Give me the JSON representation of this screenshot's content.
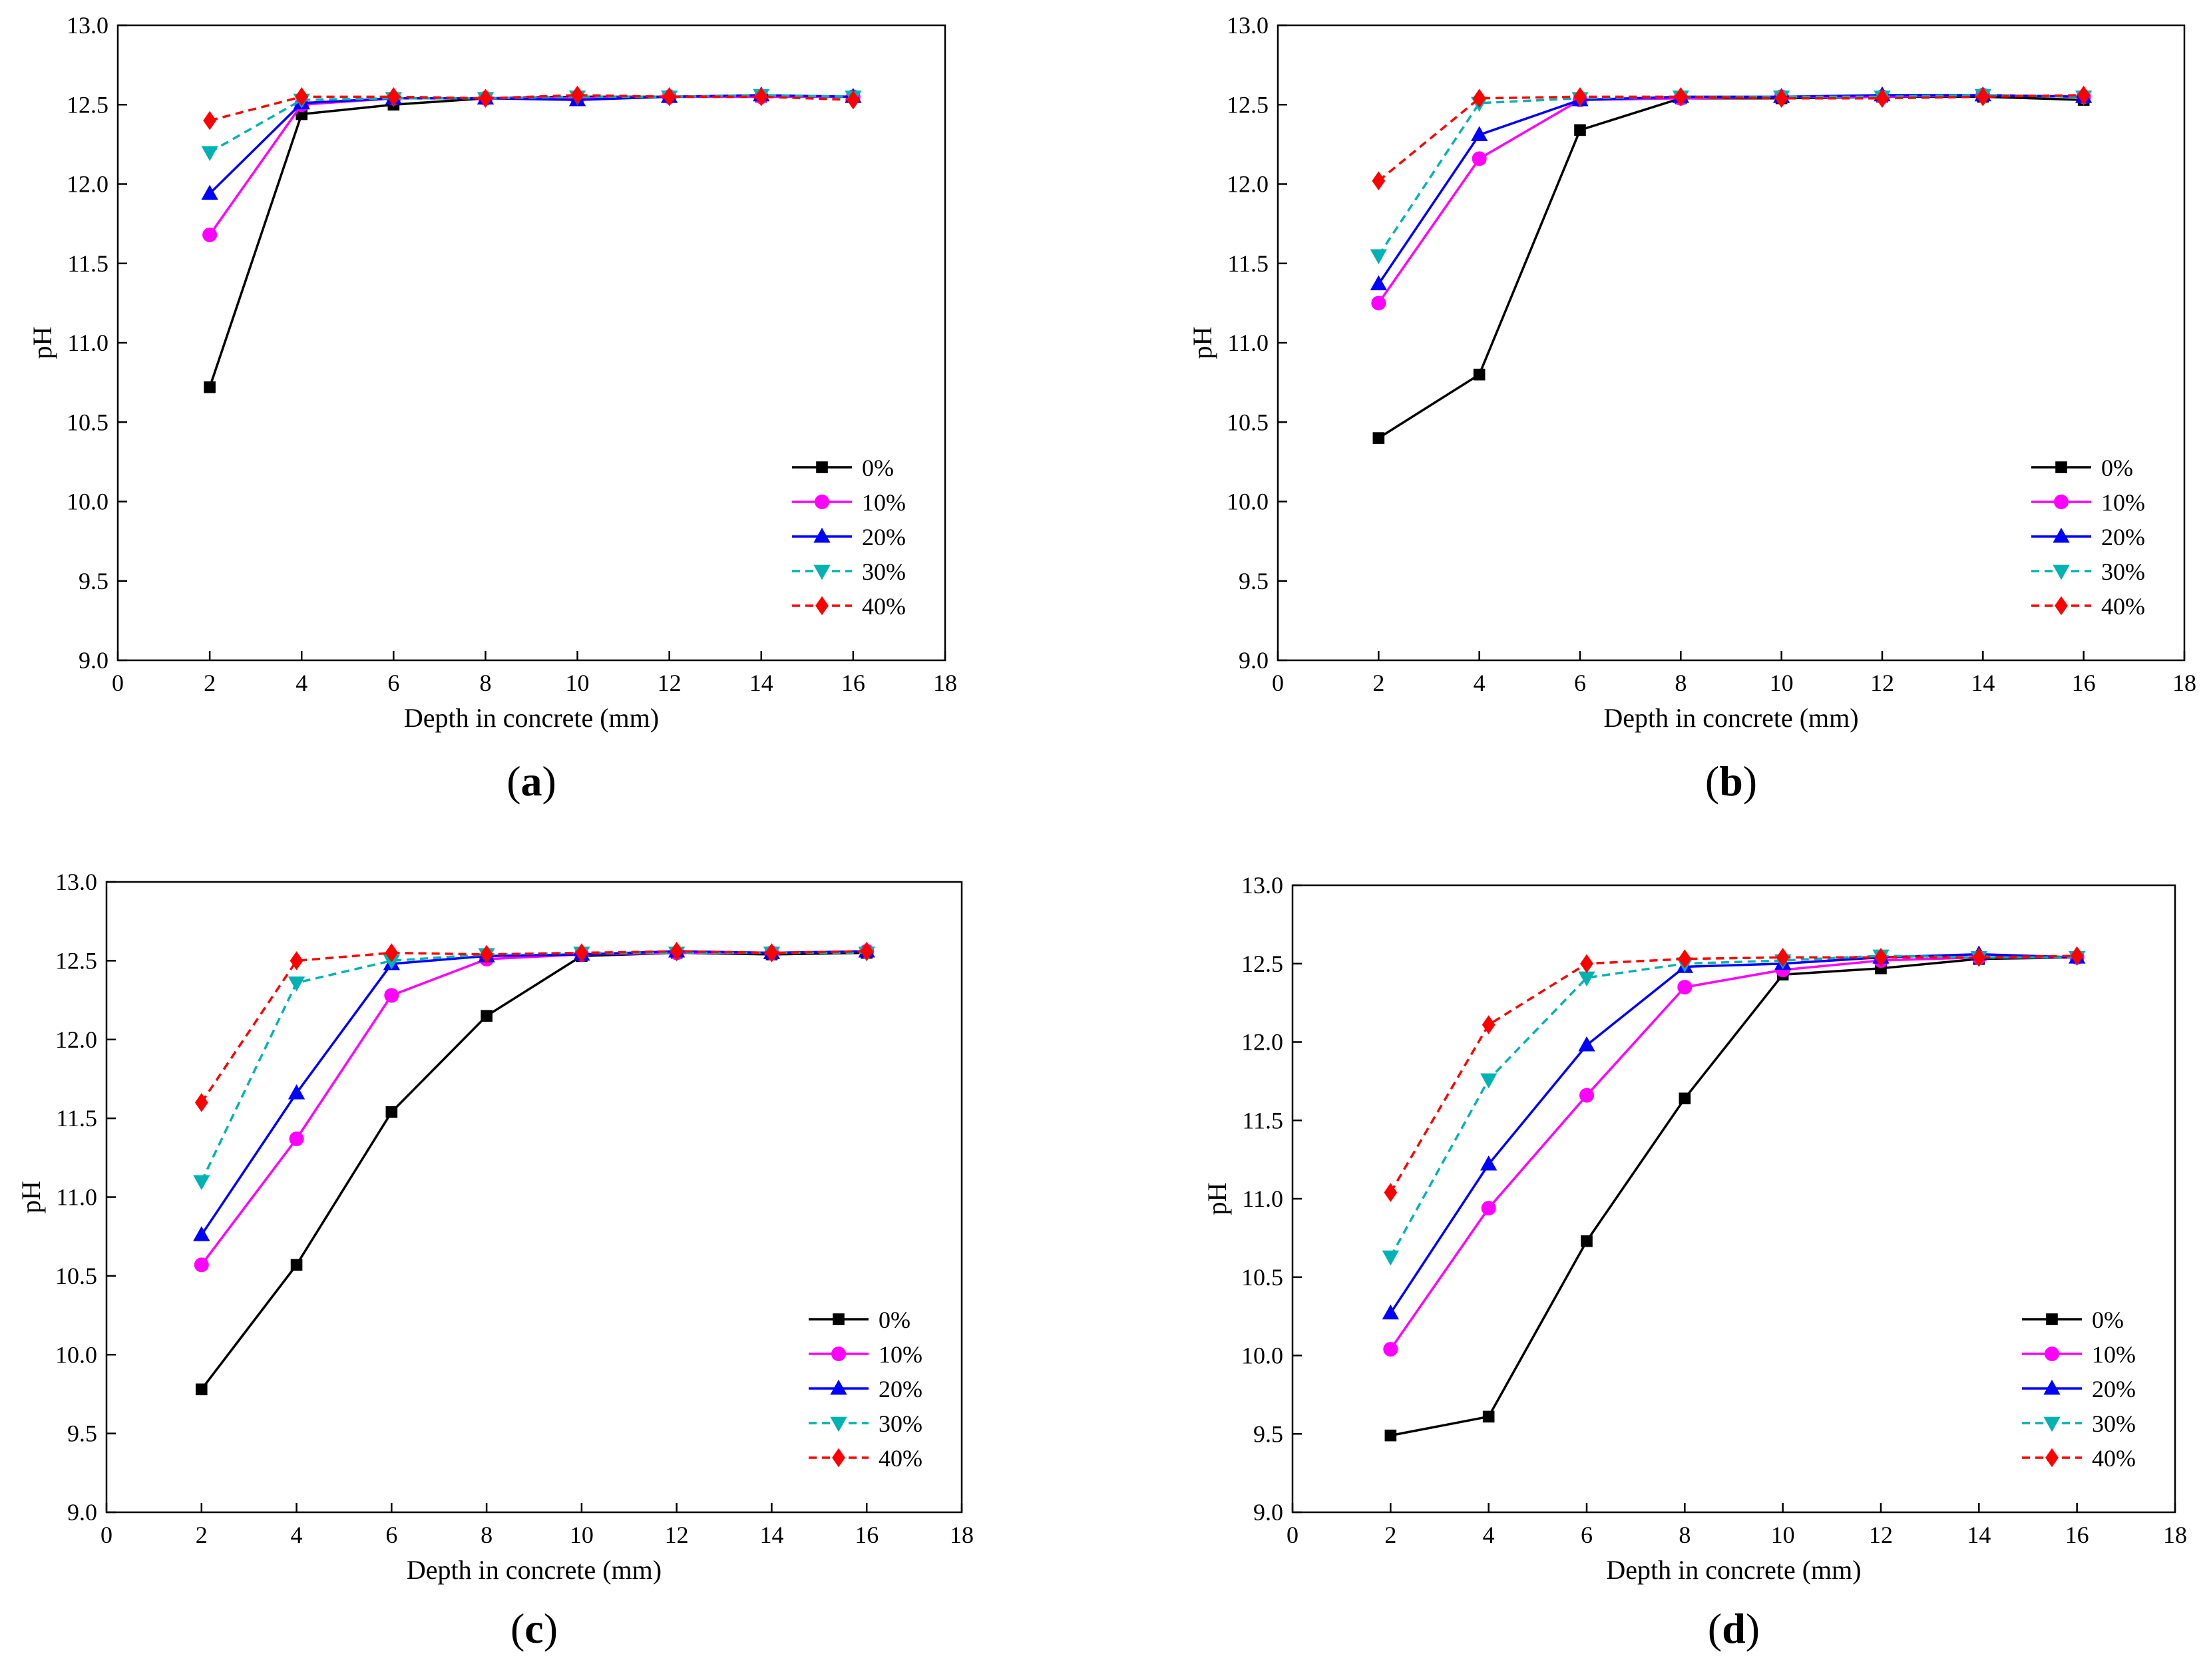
{
  "figure": {
    "description_free": true,
    "panel_labels": [
      "(a)",
      "(b)",
      "(c)",
      "(d)"
    ]
  },
  "series_style": [
    {
      "name": "0%",
      "color": "#000000",
      "dash": "solid",
      "marker": "square"
    },
    {
      "name": "10%",
      "color": "#ff00ff",
      "dash": "solid",
      "marker": "circle"
    },
    {
      "name": "20%",
      "color": "#0000ff",
      "dash": "solid",
      "marker": "triangle-up"
    },
    {
      "name": "30%",
      "color": "#00b3b3",
      "dash": "dashed",
      "marker": "triangle-down"
    },
    {
      "name": "40%",
      "color": "#ff0000",
      "dash": "dashed",
      "marker": "diamond"
    }
  ],
  "chart_data": [
    {
      "type": "line",
      "panel": "(a)",
      "xlabel": "Depth in concrete (mm)",
      "ylabel": "pH",
      "xlim": [
        0,
        18
      ],
      "ylim": [
        9.0,
        13.0
      ],
      "xticks": [
        "0",
        "2",
        "4",
        "6",
        "8",
        "10",
        "12",
        "14",
        "16",
        "18"
      ],
      "yticks": [
        "9.0",
        "9.5",
        "10.0",
        "10.5",
        "11.0",
        "11.5",
        "12.0",
        "12.5",
        "13.0"
      ],
      "legend_position": "lower-right",
      "x": [
        2,
        4,
        6,
        8,
        10,
        12,
        14,
        16
      ],
      "series": [
        {
          "name": "0%",
          "values": [
            10.72,
            12.44,
            12.5,
            12.54,
            12.55,
            12.55,
            12.55,
            12.55
          ]
        },
        {
          "name": "10%",
          "values": [
            11.68,
            12.5,
            12.54,
            12.54,
            12.54,
            12.55,
            12.55,
            12.55
          ]
        },
        {
          "name": "20%",
          "values": [
            11.94,
            12.51,
            12.54,
            12.54,
            12.53,
            12.55,
            12.56,
            12.55
          ]
        },
        {
          "name": "30%",
          "values": [
            12.2,
            12.53,
            12.54,
            12.54,
            12.55,
            12.55,
            12.56,
            12.55
          ]
        },
        {
          "name": "40%",
          "values": [
            12.4,
            12.55,
            12.55,
            12.54,
            12.56,
            12.55,
            12.55,
            12.53
          ]
        }
      ]
    },
    {
      "type": "line",
      "panel": "(b)",
      "xlabel": "Depth in concrete (mm)",
      "ylabel": "pH",
      "xlim": [
        0,
        18
      ],
      "ylim": [
        9.0,
        13.0
      ],
      "xticks": [
        "0",
        "2",
        "4",
        "6",
        "8",
        "10",
        "12",
        "14",
        "16",
        "18"
      ],
      "yticks": [
        "9.0",
        "9.5",
        "10.0",
        "10.5",
        "11.0",
        "11.5",
        "12.0",
        "12.5",
        "13.0"
      ],
      "legend_position": "lower-right",
      "x": [
        2,
        4,
        6,
        8,
        10,
        12,
        14,
        16
      ],
      "series": [
        {
          "name": "0%",
          "values": [
            10.4,
            10.8,
            12.34,
            12.54,
            12.54,
            12.55,
            12.55,
            12.53
          ]
        },
        {
          "name": "10%",
          "values": [
            11.25,
            12.16,
            12.53,
            12.54,
            12.55,
            12.55,
            12.56,
            12.55
          ]
        },
        {
          "name": "20%",
          "values": [
            11.37,
            12.31,
            12.53,
            12.55,
            12.55,
            12.56,
            12.56,
            12.55
          ]
        },
        {
          "name": "30%",
          "values": [
            11.55,
            12.51,
            12.54,
            12.55,
            12.55,
            12.55,
            12.56,
            12.55
          ]
        },
        {
          "name": "40%",
          "values": [
            12.02,
            12.54,
            12.55,
            12.55,
            12.54,
            12.54,
            12.55,
            12.56
          ]
        }
      ]
    },
    {
      "type": "line",
      "panel": "(c)",
      "xlabel": "Depth in concrete (mm)",
      "ylabel": "pH",
      "xlim": [
        0,
        18
      ],
      "ylim": [
        9.0,
        13.0
      ],
      "xticks": [
        "0",
        "2",
        "4",
        "6",
        "8",
        "10",
        "12",
        "14",
        "16",
        "18"
      ],
      "yticks": [
        "9.0",
        "9.5",
        "10.0",
        "10.5",
        "11.0",
        "11.5",
        "12.0",
        "12.5",
        "13.0"
      ],
      "legend_position": "lower-right",
      "x": [
        2,
        4,
        6,
        8,
        10,
        12,
        14,
        16
      ],
      "series": [
        {
          "name": "0%",
          "values": [
            9.78,
            10.57,
            11.54,
            12.15,
            12.53,
            12.55,
            12.54,
            12.55
          ]
        },
        {
          "name": "10%",
          "values": [
            10.57,
            11.37,
            12.28,
            12.51,
            12.54,
            12.55,
            12.55,
            12.56
          ]
        },
        {
          "name": "20%",
          "values": [
            10.76,
            11.66,
            12.48,
            12.53,
            12.54,
            12.56,
            12.55,
            12.56
          ]
        },
        {
          "name": "30%",
          "values": [
            11.1,
            12.36,
            12.5,
            12.54,
            12.55,
            12.55,
            12.55,
            12.55
          ]
        },
        {
          "name": "40%",
          "values": [
            11.6,
            12.5,
            12.55,
            12.54,
            12.55,
            12.56,
            12.55,
            12.56
          ]
        }
      ]
    },
    {
      "type": "line",
      "panel": "(d)",
      "xlabel": "Depth in concrete (mm)",
      "ylabel": "pH",
      "xlim": [
        0,
        18
      ],
      "ylim": [
        9.0,
        13.0
      ],
      "xticks": [
        "0",
        "2",
        "4",
        "6",
        "8",
        "10",
        "12",
        "14",
        "16",
        "18"
      ],
      "yticks": [
        "9.0",
        "9.5",
        "10.0",
        "10.5",
        "11.0",
        "11.5",
        "12.0",
        "12.5",
        "13.0"
      ],
      "legend_position": "lower-right",
      "x": [
        2,
        4,
        6,
        8,
        10,
        12,
        14,
        16
      ],
      "series": [
        {
          "name": "0%",
          "values": [
            9.49,
            9.61,
            10.73,
            11.64,
            12.43,
            12.47,
            12.53,
            12.54
          ]
        },
        {
          "name": "10%",
          "values": [
            10.04,
            10.94,
            11.66,
            12.35,
            12.46,
            12.52,
            12.54,
            12.54
          ]
        },
        {
          "name": "20%",
          "values": [
            10.27,
            11.22,
            11.98,
            12.48,
            12.5,
            12.54,
            12.56,
            12.54
          ]
        },
        {
          "name": "30%",
          "values": [
            10.63,
            11.76,
            12.41,
            12.5,
            12.52,
            12.55,
            12.54,
            12.54
          ]
        },
        {
          "name": "40%",
          "values": [
            11.04,
            12.11,
            12.5,
            12.53,
            12.54,
            12.54,
            12.54,
            12.55
          ]
        }
      ]
    }
  ]
}
